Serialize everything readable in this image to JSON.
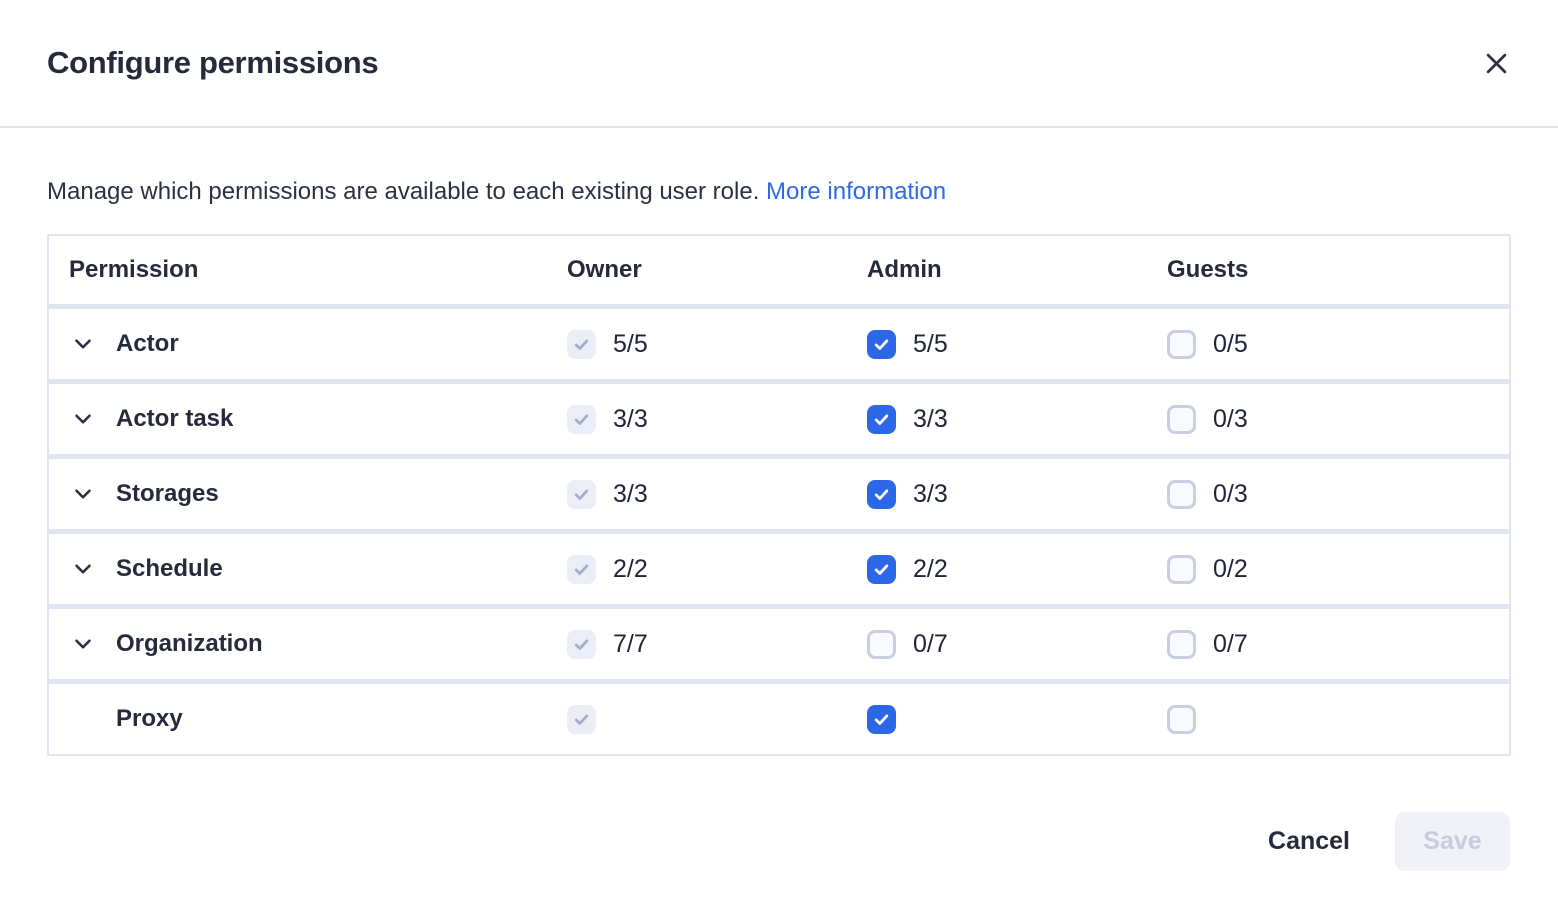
{
  "modal": {
    "title": "Configure permissions"
  },
  "intro": {
    "text": "Manage which permissions are available to each existing user role.",
    "link": "More information"
  },
  "table": {
    "columns": [
      "Permission",
      "Owner",
      "Admin",
      "Guests"
    ],
    "rows": [
      {
        "label": "Actor",
        "expandable": true,
        "cells": [
          {
            "role": "owner",
            "state": "checked-disabled",
            "count": "5/5"
          },
          {
            "role": "admin",
            "state": "checked",
            "count": "5/5"
          },
          {
            "role": "guests",
            "state": "unchecked",
            "count": "0/5"
          }
        ]
      },
      {
        "label": "Actor task",
        "expandable": true,
        "cells": [
          {
            "role": "owner",
            "state": "checked-disabled",
            "count": "3/3"
          },
          {
            "role": "admin",
            "state": "checked",
            "count": "3/3"
          },
          {
            "role": "guests",
            "state": "unchecked",
            "count": "0/3"
          }
        ]
      },
      {
        "label": "Storages",
        "expandable": true,
        "cells": [
          {
            "role": "owner",
            "state": "checked-disabled",
            "count": "3/3"
          },
          {
            "role": "admin",
            "state": "checked",
            "count": "3/3"
          },
          {
            "role": "guests",
            "state": "unchecked",
            "count": "0/3"
          }
        ]
      },
      {
        "label": "Schedule",
        "expandable": true,
        "cells": [
          {
            "role": "owner",
            "state": "checked-disabled",
            "count": "2/2"
          },
          {
            "role": "admin",
            "state": "checked",
            "count": "2/2"
          },
          {
            "role": "guests",
            "state": "unchecked",
            "count": "0/2"
          }
        ]
      },
      {
        "label": "Organization",
        "expandable": true,
        "cells": [
          {
            "role": "owner",
            "state": "checked-disabled",
            "count": "7/7"
          },
          {
            "role": "admin",
            "state": "unchecked",
            "count": "0/7"
          },
          {
            "role": "guests",
            "state": "unchecked",
            "count": "0/7"
          }
        ]
      },
      {
        "label": "Proxy",
        "expandable": false,
        "cells": [
          {
            "role": "owner",
            "state": "checked-disabled",
            "count": ""
          },
          {
            "role": "admin",
            "state": "checked",
            "count": ""
          },
          {
            "role": "guests",
            "state": "unchecked",
            "count": ""
          }
        ]
      }
    ]
  },
  "footer": {
    "cancel_label": "Cancel",
    "save_label": "Save",
    "save_disabled": true
  },
  "icons": {
    "close": "x-mark",
    "expand": "chevron-down",
    "checked": "checkmark"
  },
  "colors": {
    "accent_blue": "#2c67e8",
    "link_blue": "#2e6ae5",
    "divider": "#e1e4f1",
    "checkbox_disabled_bg": "#eceef7",
    "checkbox_disabled_check": "#a5adca",
    "checkbox_unchecked_border": "#c9cfe1",
    "save_disabled_bg": "#f1f2f8",
    "save_disabled_text": "#c6cbde"
  }
}
